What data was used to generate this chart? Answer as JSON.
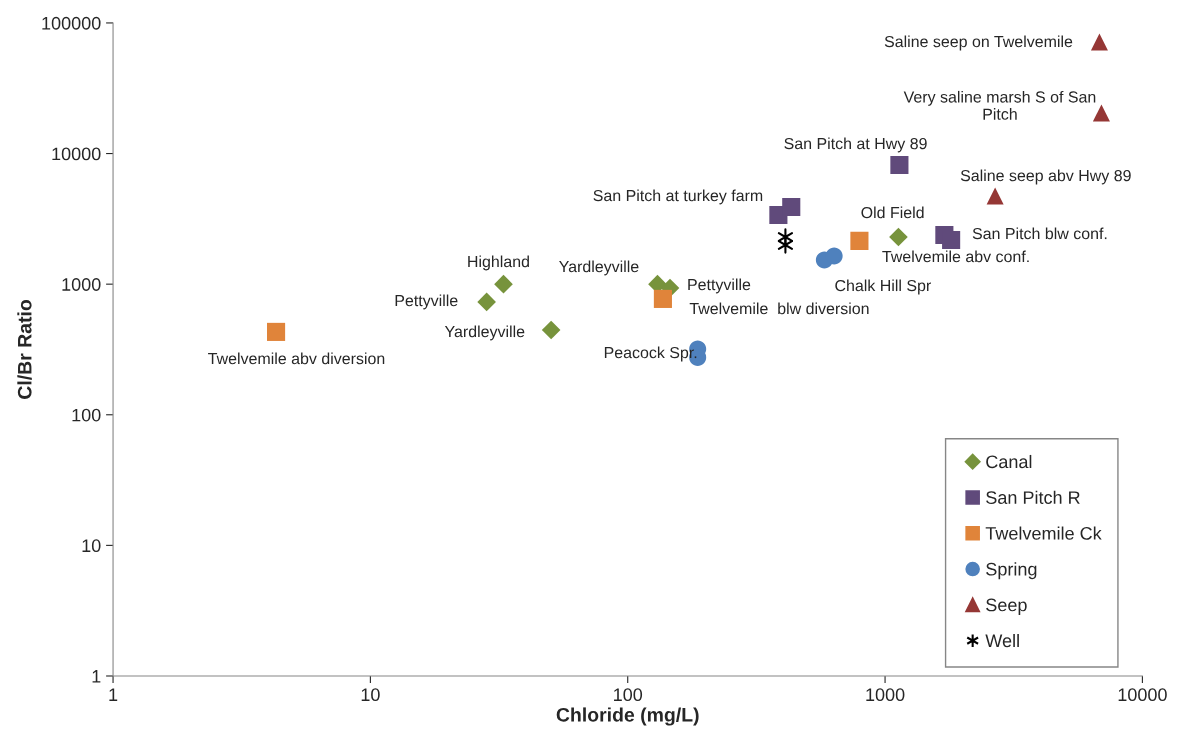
{
  "chart_data": {
    "type": "scatter",
    "xlabel": "Chloride (mg/L)",
    "ylabel": "Cl/Br Ratio",
    "log": "xy",
    "xlim": [
      1,
      10000
    ],
    "xticks": [
      1,
      10,
      100,
      1000,
      10000
    ],
    "ylim": [
      1,
      100000
    ],
    "yticks": [
      1,
      10,
      100,
      1000,
      10000,
      100000
    ],
    "grid": false,
    "legend": "bottom right",
    "series": [
      {
        "name": "Canal",
        "color": "#77933c",
        "marker": "diamond",
        "x": [
          32.9,
          28.3,
          50.4,
          130.5,
          146,
          1127
        ],
        "values": [
          1000,
          731,
          446,
          1000,
          935,
          2298
        ]
      },
      {
        "name": "San Pitch R",
        "color": "#604a7b",
        "marker": "square",
        "x": [
          385,
          432,
          1137,
          1700,
          1806
        ],
        "values": [
          3388,
          3899,
          8180,
          2381,
          2180
        ]
      },
      {
        "name": "Twelvemile Ck",
        "color": "#e0843a",
        "marker": "square",
        "x": [
          4.3,
          137,
          795
        ],
        "values": [
          431,
          771,
          2143
        ]
      },
      {
        "name": "Spring",
        "color": "#4f81bd",
        "marker": "circle",
        "x": [
          187,
          187,
          581,
          634
        ],
        "values": [
          319,
          275,
          1532,
          1644
        ]
      },
      {
        "name": "Seep",
        "color": "#953735",
        "marker": "triangle",
        "x": [
          6810,
          6930,
          2678
        ],
        "values": [
          71600,
          20460,
          4733
        ]
      },
      {
        "name": "Well",
        "color": "#000000",
        "marker": "cross",
        "x": [
          410,
          410
        ],
        "values": [
          2297,
          1995
        ]
      }
    ],
    "annotations": [
      "Highland",
      "Pettyville",
      "Yardleyville",
      "Yardleyville",
      "Pettyville",
      "Twelvemile  blw diversion",
      "Twelvemile abv diversion",
      "Peacock Spr.",
      "San Pitch at turkey farm",
      "San Pitch at Hwy 89",
      "Old Field",
      "Twelvemile abv conf.",
      "Chalk Hill Spr",
      "San Pitch blw conf.",
      "Saline seep abv Hwy 89",
      "Very saline marsh S of San\nPitch",
      "Saline seep on Twelvemile"
    ]
  }
}
